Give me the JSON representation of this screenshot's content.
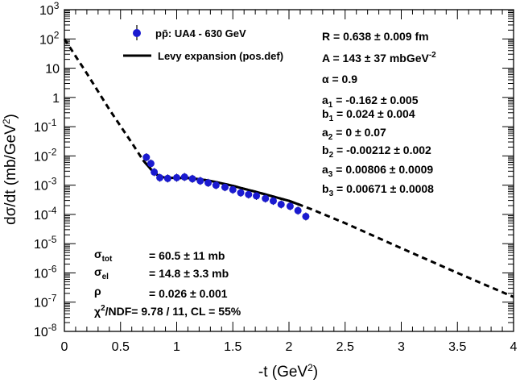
{
  "chart_data": {
    "type": "scatter",
    "xlabel": "-t (GeV²)",
    "ylabel": "dσ/dt (mb/GeV²)",
    "xlim": [
      0,
      4
    ],
    "ylim_log10": [
      -8,
      3
    ],
    "y_scale": "log",
    "x_ticks": [
      "0",
      "0.5",
      "1",
      "1.5",
      "2",
      "2.5",
      "3",
      "3.5",
      "4"
    ],
    "y_ticks": [
      {
        "base": "10",
        "exp": "-8"
      },
      {
        "base": "10",
        "exp": "-7"
      },
      {
        "base": "10",
        "exp": "-6"
      },
      {
        "base": "10",
        "exp": "-5"
      },
      {
        "base": "10",
        "exp": "-4"
      },
      {
        "base": "10",
        "exp": "-3"
      },
      {
        "base": "10",
        "exp": "-2"
      },
      {
        "base": "10",
        "exp": "-1"
      },
      {
        "base": "1",
        "exp": ""
      },
      {
        "base": "10",
        "exp": ""
      },
      {
        "base": "10",
        "exp": "2"
      },
      {
        "base": "10",
        "exp": "3"
      }
    ],
    "grid": false,
    "legend_position": "top-left",
    "legend": [
      {
        "label": "pp̄: UA4 - 630 GeV",
        "style": "marker",
        "color": "#1a1ad0"
      },
      {
        "label": "Levy expansion (pos.def)",
        "style": "line",
        "color": "#000000"
      }
    ],
    "data_points": {
      "name": "pp̄: UA4 - 630 GeV",
      "color": "#1a1ad0",
      "x": [
        0.73,
        0.77,
        0.8,
        0.85,
        0.92,
        1.0,
        1.07,
        1.14,
        1.21,
        1.28,
        1.35,
        1.43,
        1.5,
        1.57,
        1.64,
        1.71,
        1.79,
        1.86,
        1.93,
        2.01,
        2.08,
        2.15
      ],
      "y": [
        0.009,
        0.0055,
        0.0028,
        0.0018,
        0.0017,
        0.0018,
        0.0019,
        0.00165,
        0.0014,
        0.0012,
        0.001,
        0.00085,
        0.0007,
        0.00055,
        0.00048,
        0.00043,
        0.00035,
        0.00029,
        0.00022,
        0.00019,
        0.000135,
        8.5e-05
      ]
    },
    "fit_curve": {
      "name": "Levy expansion (pos.def)",
      "x": [
        0.0,
        0.2,
        0.4,
        0.6,
        0.7,
        0.75,
        0.8,
        0.85,
        0.9,
        1.0,
        1.1,
        1.2,
        1.3,
        1.4,
        1.5,
        1.6,
        1.7,
        1.8,
        1.9,
        2.0,
        2.1,
        2.2,
        2.5,
        3.0,
        3.5,
        4.0
      ],
      "y": [
        100,
        6.6,
        0.39,
        0.028,
        0.0072,
        0.0043,
        0.0026,
        0.002,
        0.0018,
        0.00175,
        0.00175,
        0.0016,
        0.0014,
        0.00115,
        0.00095,
        0.00075,
        0.0006,
        0.00047,
        0.00037,
        0.00029,
        0.00021,
        0.00015,
        5e-05,
        7e-06,
        1e-06,
        1.5e-07
      ],
      "solid_range": [
        0.73,
        2.15
      ]
    },
    "annotations_right": [
      "R = 0.638 ± 0.009 fm",
      "A = 143 ± 37 mbGeV⁻²",
      "α = 0.9",
      "a₁ = -0.162 ± 0.005",
      "b₁ = 0.024 ± 0.004",
      "a₂ = 0 ± 0.07",
      "b₂ = -0.00212 ± 0.002",
      "a₃ = 0.00806 ± 0.0009",
      "b₃ = 0.00671 ± 0.0008"
    ],
    "annotations_left": [
      {
        "sym": "σtot",
        "val": "= 60.5 ± 11 mb"
      },
      {
        "sym": "σel",
        "val": "= 14.8 ± 3.3 mb"
      },
      {
        "sym": "ρ",
        "val": "= 0.026 ± 0.001"
      },
      {
        "sym": "χ²/NDF",
        "val": "= 9.78 / 11,  CL = 55%"
      }
    ]
  }
}
